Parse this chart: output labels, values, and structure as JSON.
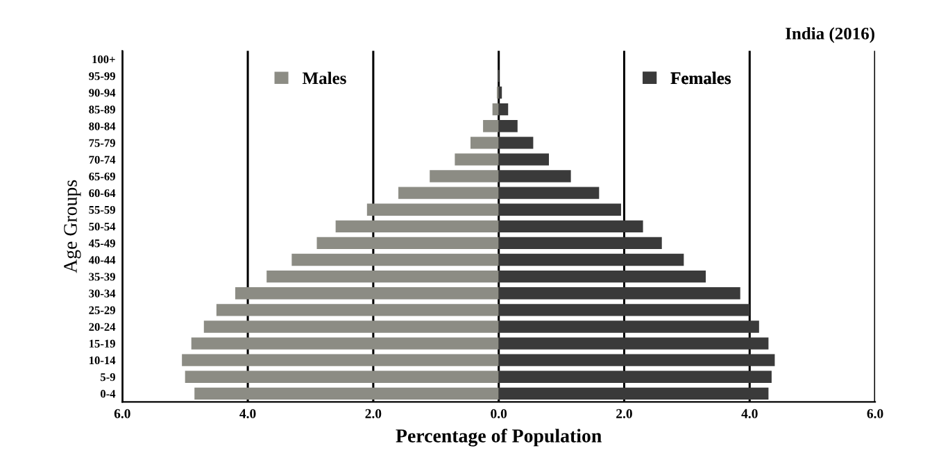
{
  "chart_data": {
    "type": "bar",
    "orientation": "horizontal",
    "stacked": true,
    "title": "India (2016)",
    "xlabel": "Percentage of Population",
    "ylabel": "Age Groups",
    "categories": [
      "100+",
      "95-99",
      "90-94",
      "85-89",
      "80-84",
      "75-79",
      "70-74",
      "65-69",
      "60-64",
      "55-59",
      "50-54",
      "45-49",
      "40-44",
      "35-39",
      "30-34",
      "25-29",
      "20-24",
      "15-19",
      "10-14",
      "5-9",
      "0-4"
    ],
    "series": [
      {
        "name": "Males",
        "color": "#8c8c84",
        "values": [
          0,
          -0.01,
          -0.03,
          -0.1,
          -0.25,
          -0.45,
          -0.7,
          -1.1,
          -1.6,
          -2.1,
          -2.6,
          -2.9,
          -3.3,
          -3.7,
          -4.2,
          -4.5,
          -4.7,
          -4.9,
          -5.05,
          -5.0,
          -4.85
        ]
      },
      {
        "name": "Females",
        "color": "#3a3a3a",
        "values": [
          0,
          0.01,
          0.05,
          0.15,
          0.3,
          0.55,
          0.8,
          1.15,
          1.6,
          1.95,
          2.3,
          2.6,
          2.95,
          3.3,
          3.85,
          4.0,
          4.15,
          4.3,
          4.4,
          4.35,
          4.3
        ]
      }
    ],
    "xlim": [
      -6,
      6
    ],
    "xticks": [
      {
        "value": -6,
        "label": "6.0"
      },
      {
        "value": -4,
        "label": "4.0"
      },
      {
        "value": -2,
        "label": "2.0"
      },
      {
        "value": 0,
        "label": "0.0"
      },
      {
        "value": 2,
        "label": "2.0"
      },
      {
        "value": 4,
        "label": "4.0"
      },
      {
        "value": 6,
        "label": "6.0"
      }
    ],
    "grid": "x",
    "legend": "top"
  }
}
